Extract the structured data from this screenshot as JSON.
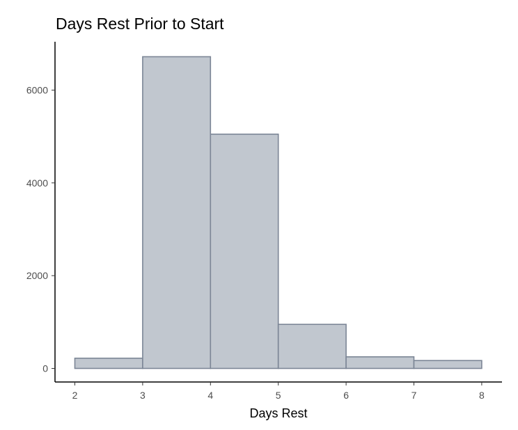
{
  "chart_data": {
    "type": "bar",
    "title": "Days Rest Prior to Start",
    "xlabel": "Days Rest",
    "ylabel": "",
    "bins": [
      {
        "x0": 2,
        "x1": 3,
        "count": 220
      },
      {
        "x0": 3,
        "x1": 4,
        "count": 6720
      },
      {
        "x0": 4,
        "x1": 5,
        "count": 5050
      },
      {
        "x0": 5,
        "x1": 6,
        "count": 950
      },
      {
        "x0": 6,
        "x1": 7,
        "count": 250
      },
      {
        "x0": 7,
        "x1": 8,
        "count": 170
      }
    ],
    "x_ticks": [
      2,
      3,
      4,
      5,
      6,
      7,
      8
    ],
    "y_ticks": [
      0,
      2000,
      4000,
      6000
    ],
    "xlim": [
      2,
      8
    ],
    "ylim": [
      0,
      6720
    ],
    "grid": false,
    "legend": "none",
    "colors": {
      "bar_fill": "#c1c7cf",
      "bar_stroke": "#7c8696",
      "axis": "#000000",
      "tick_label": "#4d4d4d"
    }
  }
}
